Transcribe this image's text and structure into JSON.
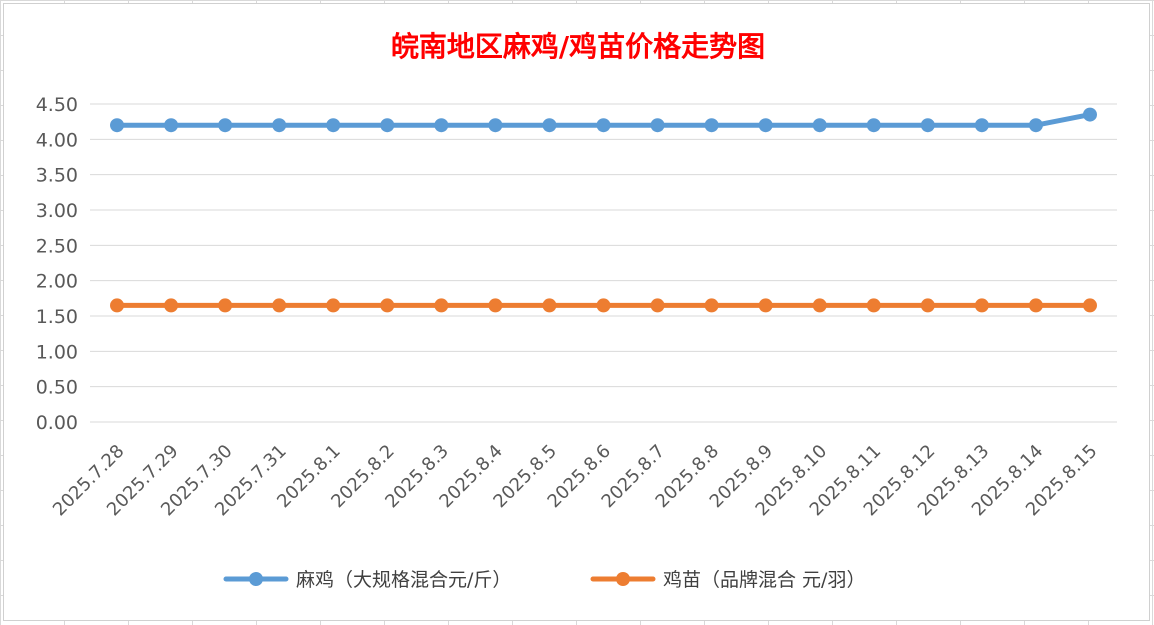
{
  "chart_data": {
    "type": "line",
    "title": "皖南地区麻鸡/鸡苗价格走势图",
    "categories": [
      "2025.7.28",
      "2025.7.29",
      "2025.7.30",
      "2025.7.31",
      "2025.8.1",
      "2025.8.2",
      "2025.8.3",
      "2025.8.4",
      "2025.8.5",
      "2025.8.6",
      "2025.8.7",
      "2025.8.8",
      "2025.8.9",
      "2025.8.10",
      "2025.8.11",
      "2025.8.12",
      "2025.8.13",
      "2025.8.14",
      "2025.8.15"
    ],
    "series": [
      {
        "name": "麻鸡（大规格混合元/斤）",
        "color": "#5b9bd5",
        "values": [
          4.2,
          4.2,
          4.2,
          4.2,
          4.2,
          4.2,
          4.2,
          4.2,
          4.2,
          4.2,
          4.2,
          4.2,
          4.2,
          4.2,
          4.2,
          4.2,
          4.2,
          4.2,
          4.35
        ]
      },
      {
        "name": "鸡苗（品牌混合 元/羽）",
        "color": "#ed7d31",
        "values": [
          1.65,
          1.65,
          1.65,
          1.65,
          1.65,
          1.65,
          1.65,
          1.65,
          1.65,
          1.65,
          1.65,
          1.65,
          1.65,
          1.65,
          1.65,
          1.65,
          1.65,
          1.65,
          1.65
        ]
      }
    ],
    "ylim": [
      0,
      4.5
    ],
    "yticks": [
      "0.00",
      "0.50",
      "1.00",
      "1.50",
      "2.00",
      "2.50",
      "3.00",
      "3.50",
      "4.00",
      "4.50"
    ],
    "grid": true,
    "legend": "bottom"
  }
}
